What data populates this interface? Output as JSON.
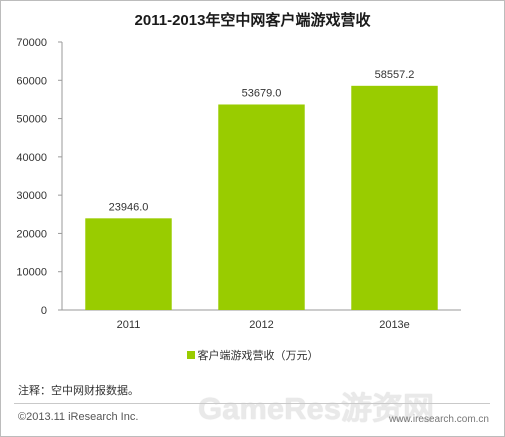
{
  "chart_data": {
    "type": "bar",
    "title": "2011-2013年空中网客户端游戏营收",
    "categories": [
      "2011",
      "2012",
      "2013e"
    ],
    "series": [
      {
        "name": "客户端游戏营收（万元）",
        "values": [
          23946.0,
          53679.0,
          58557.2
        ],
        "value_labels": [
          "23946.0",
          "53679.0",
          "58557.2"
        ],
        "color": "#99cc00"
      }
    ],
    "ylim": [
      0,
      70000
    ],
    "yticks": [
      0,
      10000,
      20000,
      30000,
      40000,
      50000,
      60000,
      70000
    ],
    "grid": false,
    "legend_position": "bottom"
  },
  "footer": {
    "note": "注释：空中网财报数据。",
    "copyright": "©2013.11 iResearch Inc.",
    "watermark": "GameRes游资网",
    "site": "www.iresearch.com.cn"
  }
}
